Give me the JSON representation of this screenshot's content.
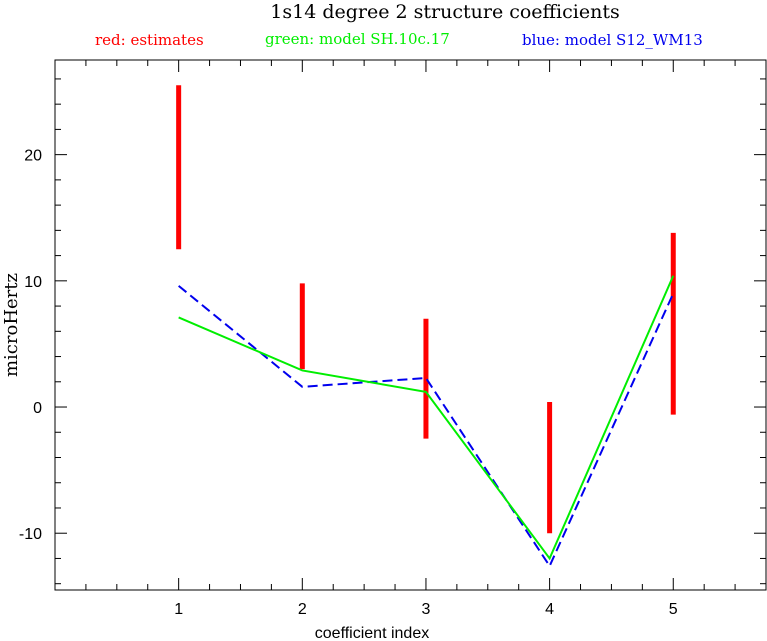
{
  "chart_data": {
    "type": "line",
    "title": "1s14 degree 2 structure coefficients",
    "legend": [
      {
        "text": "red: estimates",
        "color": "#ff0000"
      },
      {
        "text": "green: model SH.10c.17",
        "color": "#00ee00"
      },
      {
        "text": "blue: model S12_WM13",
        "color": "#0000ee"
      }
    ],
    "xlabel": "coefficient index",
    "ylabel": "microHertz",
    "xlim": [
      0.0,
      5.75
    ],
    "ylim": [
      -14.5,
      27.5
    ],
    "xticks": [
      1,
      2,
      3,
      4,
      5
    ],
    "yticks": [
      -10,
      0,
      10,
      20
    ],
    "estimates": [
      {
        "x": 1,
        "low": 12.5,
        "high": 25.5
      },
      {
        "x": 2,
        "low": 3.0,
        "high": 9.8
      },
      {
        "x": 3,
        "low": -2.5,
        "high": 7.0
      },
      {
        "x": 4,
        "low": -10.0,
        "high": 0.4
      },
      {
        "x": 5,
        "low": -0.6,
        "high": 13.8
      }
    ],
    "series": [
      {
        "name": "model SH.10c.17",
        "color": "#00ee00",
        "style": "solid",
        "x": [
          1,
          2,
          3,
          4,
          5
        ],
        "y": [
          7.1,
          2.9,
          1.2,
          -12.0,
          10.4
        ]
      },
      {
        "name": "model S12_WM13",
        "color": "#0000ee",
        "style": "dashed",
        "x": [
          1,
          2,
          3,
          4,
          5
        ],
        "y": [
          9.6,
          1.6,
          2.3,
          -12.6,
          9.0
        ]
      }
    ],
    "grid": false
  }
}
